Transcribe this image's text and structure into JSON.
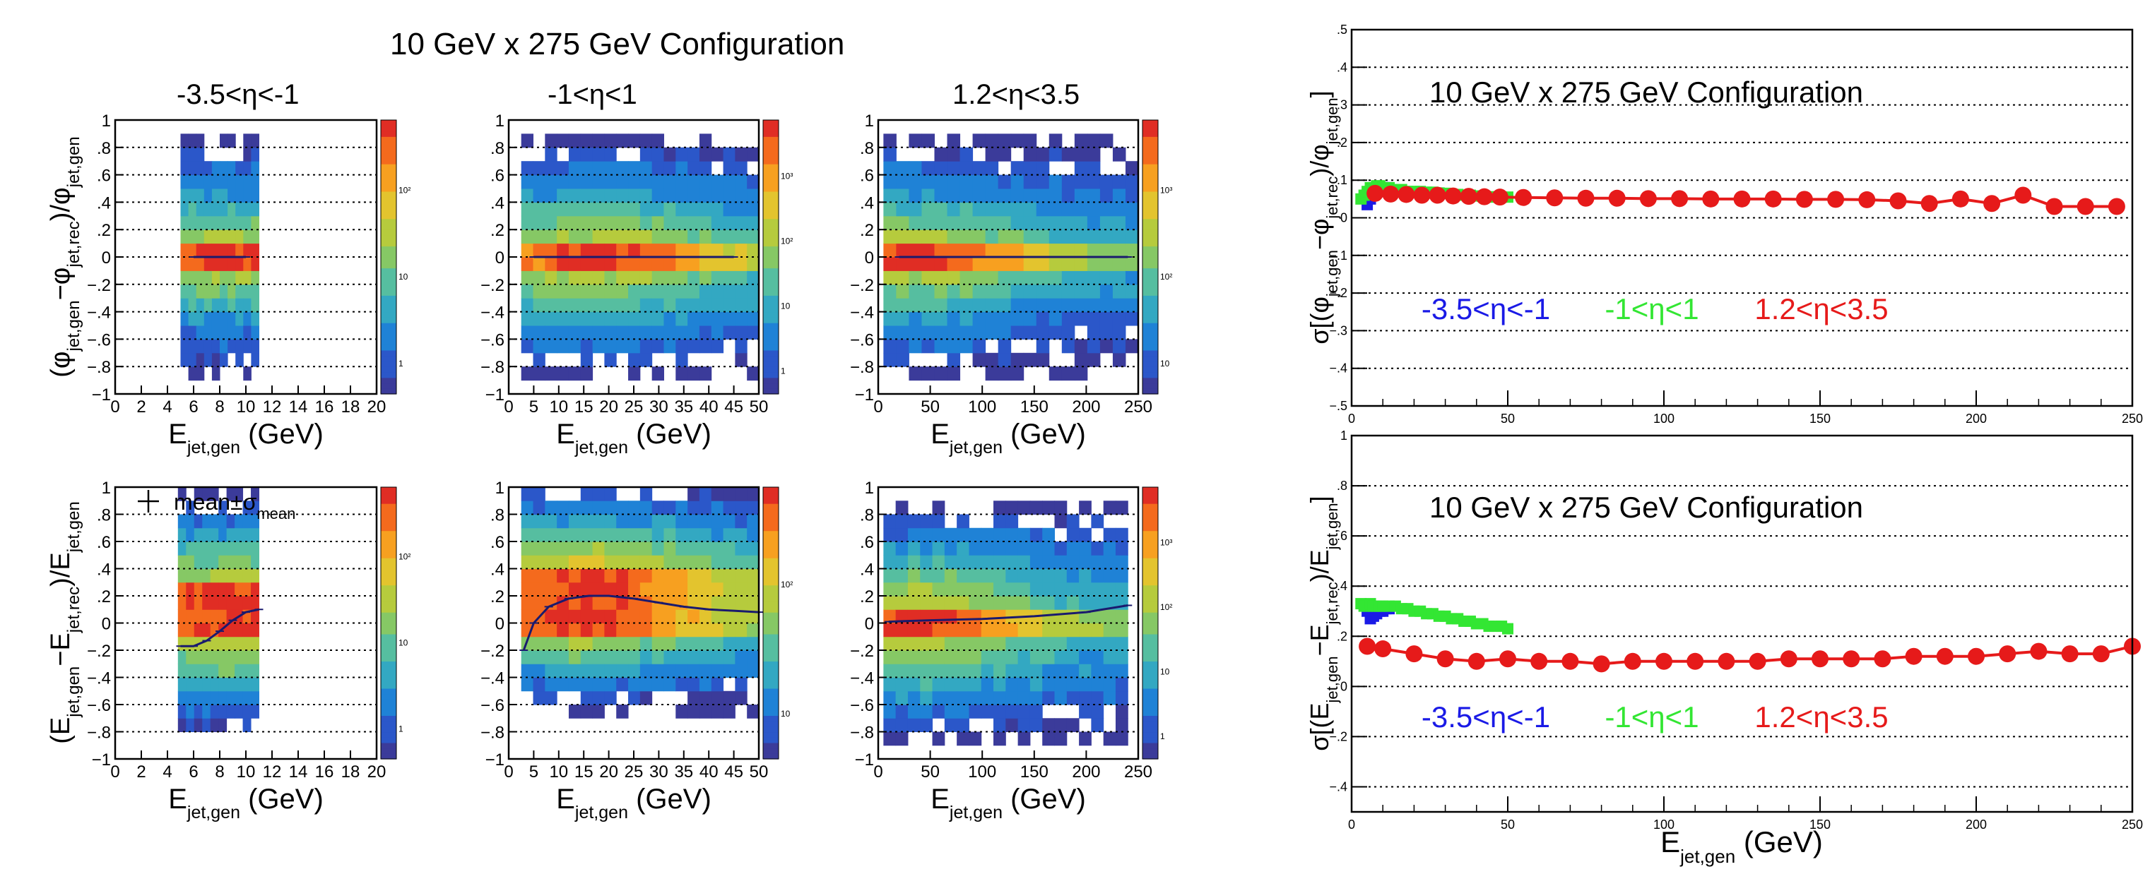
{
  "figure": {
    "left_title": "10 GeV x 275 GeV Configuration",
    "colors": {
      "eta_backward": "#1a1ae6",
      "eta_central": "#33e633",
      "eta_forward": "#e61a1a"
    }
  },
  "chart_data": [
    {
      "type": "heatmap",
      "panel": "top-left",
      "title": "-3.5<η<-1",
      "xlabel": "E_jet,gen (GeV)",
      "ylabel": "(φ_jet,gen−φ_jet,rec)/φ_jet,gen",
      "xlim": [
        0,
        20
      ],
      "ylim": [
        -1,
        1
      ],
      "xticks": [
        0,
        2,
        4,
        6,
        8,
        10,
        12,
        14,
        16,
        18,
        20
      ],
      "yticks": [
        -0.8,
        -0.6,
        -0.4,
        -0.2,
        0,
        0.2,
        0.4,
        0.6,
        0.8,
        1
      ],
      "color_scale": "log",
      "zticks": [
        "1",
        "10",
        "10²"
      ],
      "grid": "horizontal dotted",
      "occupied_x": [
        5,
        11
      ],
      "peak_x": 9,
      "core_halfwidth_y": 0.06,
      "spread_halfwidth_y": 0.38,
      "tail_halfwidth_y": 0.9,
      "mean_points": [
        [
          6,
          0
        ],
        [
          8,
          0
        ],
        [
          10,
          0
        ]
      ]
    },
    {
      "type": "heatmap",
      "panel": "top-middle",
      "title": "-1<η<1",
      "xlabel": "E_jet,gen (GeV)",
      "xlim": [
        0,
        50
      ],
      "ylim": [
        -1,
        1
      ],
      "xticks": [
        0,
        5,
        10,
        15,
        20,
        25,
        30,
        35,
        40,
        45,
        50
      ],
      "yticks": [
        -0.8,
        -0.6,
        -0.4,
        -0.2,
        0,
        0.2,
        0.4,
        0.6,
        0.8,
        1
      ],
      "color_scale": "log",
      "zticks": [
        "1",
        "10",
        "10²",
        "10³"
      ],
      "grid": "horizontal dotted",
      "occupied_x": [
        2.5,
        50
      ],
      "peak_x": 18,
      "core_halfwidth_y": 0.07,
      "spread_halfwidth_y": 0.45,
      "tail_halfwidth_y": 0.9,
      "mean_points": [
        [
          5,
          0
        ],
        [
          15,
          0
        ],
        [
          25,
          0
        ],
        [
          35,
          0
        ],
        [
          45,
          0
        ]
      ]
    },
    {
      "type": "heatmap",
      "panel": "top-right",
      "title": "1.2<η<3.5",
      "xlabel": "E_jet,gen (GeV)",
      "xlim": [
        0,
        250
      ],
      "ylim": [
        -1,
        1
      ],
      "xticks": [
        0,
        50,
        100,
        150,
        200,
        250
      ],
      "yticks": [
        -0.8,
        -0.6,
        -0.4,
        -0.2,
        0,
        0.2,
        0.4,
        0.6,
        0.8,
        1
      ],
      "color_scale": "log",
      "zticks": [
        "10",
        "10²",
        "10³"
      ],
      "grid": "horizontal dotted",
      "occupied_x": [
        5,
        250
      ],
      "peak_x": 30,
      "core_halfwidth_y": 0.07,
      "spread_halfwidth_y": 0.4,
      "tail_halfwidth_y": 0.9,
      "mean_points": [
        [
          20,
          0
        ],
        [
          80,
          0
        ],
        [
          140,
          0
        ],
        [
          200,
          0
        ],
        [
          240,
          0
        ]
      ]
    },
    {
      "type": "heatmap",
      "panel": "bottom-left",
      "xlabel": "E_jet,gen (GeV)",
      "ylabel": "(E_jet,gen−E_jet,rec)/E_jet,gen",
      "xlim": [
        0,
        20
      ],
      "ylim": [
        -1,
        1
      ],
      "xticks": [
        0,
        2,
        4,
        6,
        8,
        10,
        12,
        14,
        16,
        18,
        20
      ],
      "yticks": [
        -0.8,
        -0.6,
        -0.4,
        -0.2,
        0,
        0.2,
        0.4,
        0.6,
        0.8,
        1
      ],
      "color_scale": "log",
      "zticks": [
        "1",
        "10",
        "10²"
      ],
      "grid": "horizontal dotted",
      "legend_text": "mean±σ",
      "legend_sub": "mean",
      "occupied_x": [
        4.8,
        11
      ],
      "peak_x": 9,
      "core_center_y": 0.08,
      "core_halfwidth_y": 0.2,
      "spread_halfwidth_y": 0.55,
      "tail_halfwidth_y": 0.9,
      "mean_points": [
        [
          5,
          -0.17
        ],
        [
          6,
          -0.17
        ],
        [
          7,
          -0.13
        ],
        [
          8,
          -0.06
        ],
        [
          9,
          0.02
        ],
        [
          10,
          0.08
        ],
        [
          11,
          0.1
        ]
      ]
    },
    {
      "type": "heatmap",
      "panel": "bottom-middle",
      "xlabel": "E_jet,gen (GeV)",
      "xlim": [
        0,
        50
      ],
      "ylim": [
        -1,
        1
      ],
      "xticks": [
        0,
        5,
        10,
        15,
        20,
        25,
        30,
        35,
        40,
        45,
        50
      ],
      "yticks": [
        -0.8,
        -0.6,
        -0.4,
        -0.2,
        0,
        0.2,
        0.4,
        0.6,
        0.8,
        1
      ],
      "color_scale": "log",
      "zticks": [
        "10",
        "10²"
      ],
      "grid": "horizontal dotted",
      "occupied_x": [
        2.5,
        50
      ],
      "peak_x": 15,
      "core_center_y": 0.2,
      "core_halfwidth_y": 0.25,
      "spread_halfwidth_y": 0.55,
      "tail_halfwidth_y": 0.85,
      "mean_points": [
        [
          3,
          -0.2
        ],
        [
          5,
          0
        ],
        [
          8,
          0.12
        ],
        [
          12,
          0.18
        ],
        [
          16,
          0.2
        ],
        [
          20,
          0.2
        ],
        [
          25,
          0.18
        ],
        [
          30,
          0.15
        ],
        [
          35,
          0.12
        ],
        [
          40,
          0.1
        ],
        [
          45,
          0.09
        ],
        [
          50,
          0.08
        ]
      ]
    },
    {
      "type": "heatmap",
      "panel": "bottom-right",
      "xlabel": "E_jet,gen (GeV)",
      "xlim": [
        0,
        250
      ],
      "ylim": [
        -1,
        1
      ],
      "xticks": [
        0,
        50,
        100,
        150,
        200,
        250
      ],
      "yticks": [
        -0.8,
        -0.6,
        -0.4,
        -0.2,
        0,
        0.2,
        0.4,
        0.6,
        0.8,
        1
      ],
      "color_scale": "log",
      "zticks": [
        "1",
        "10",
        "10²",
        "10³"
      ],
      "grid": "horizontal dotted",
      "occupied_x": [
        5,
        240
      ],
      "peak_x": 25,
      "core_center_y": 0.02,
      "core_halfwidth_y": 0.1,
      "spread_halfwidth_y": 0.5,
      "tail_halfwidth_y": 0.9,
      "mean_points": [
        [
          10,
          0.01
        ],
        [
          50,
          0.02
        ],
        [
          100,
          0.03
        ],
        [
          150,
          0.05
        ],
        [
          200,
          0.08
        ],
        [
          240,
          0.13
        ]
      ]
    },
    {
      "type": "scatter",
      "panel": "right-top",
      "title": "10 GeV x 275 GeV Configuration",
      "ylabel": "σ[(φ_jet,gen−φ_jet,rec)/φ_jet,gen]",
      "xlim": [
        0,
        250
      ],
      "ylim": [
        -0.5,
        0.5
      ],
      "xticks": [
        0,
        50,
        100,
        150,
        200,
        250
      ],
      "yticks": [
        -0.5,
        -0.4,
        -0.3,
        -0.2,
        -0.1,
        0,
        0.1,
        0.2,
        0.3,
        0.4,
        0.5
      ],
      "grid": "horizontal dotted",
      "series": [
        {
          "name": "-3.5<η<-1",
          "color": "#1a1ae6",
          "marker": "square",
          "x": [
            5,
            6,
            7,
            8,
            9,
            10,
            11
          ],
          "y": [
            0.035,
            0.05,
            0.06,
            0.07,
            0.07,
            0.08,
            0.08
          ]
        },
        {
          "name": "-1<η<1",
          "color": "#33e633",
          "marker": "square",
          "x": [
            3,
            4,
            5,
            6,
            7,
            8,
            9,
            10,
            12,
            14,
            16,
            18,
            20,
            22,
            24,
            26,
            28,
            30,
            32,
            34,
            36,
            38,
            40,
            42,
            44,
            46,
            48,
            50
          ],
          "y": [
            0.05,
            0.06,
            0.07,
            0.08,
            0.08,
            0.085,
            0.085,
            0.08,
            0.08,
            0.075,
            0.075,
            0.07,
            0.07,
            0.07,
            0.068,
            0.068,
            0.066,
            0.065,
            0.063,
            0.062,
            0.06,
            0.06,
            0.058,
            0.057,
            0.056,
            0.055,
            0.055,
            0.055
          ]
        },
        {
          "name": "1.2<η<3.5",
          "color": "#e61a1a",
          "marker": "circle",
          "x": [
            7.5,
            12.5,
            17.5,
            22.5,
            27.5,
            32.5,
            37.5,
            42.5,
            47.5,
            55,
            65,
            75,
            85,
            95,
            105,
            115,
            125,
            135,
            145,
            155,
            165,
            175,
            185,
            195,
            205,
            215,
            225,
            235,
            245
          ],
          "y": [
            0.065,
            0.063,
            0.062,
            0.06,
            0.06,
            0.058,
            0.057,
            0.056,
            0.055,
            0.054,
            0.053,
            0.052,
            0.052,
            0.051,
            0.051,
            0.05,
            0.05,
            0.05,
            0.049,
            0.049,
            0.048,
            0.045,
            0.038,
            0.05,
            0.038,
            0.06,
            0.03,
            0.03,
            0.03
          ]
        }
      ]
    },
    {
      "type": "scatter",
      "panel": "right-bottom",
      "title": "10 GeV x 275 GeV Configuration",
      "xlabel": "E_jet,gen (GeV)",
      "ylabel": "σ[(E_jet,gen−E_jet,rec)/E_jet,gen]",
      "xlim": [
        0,
        250
      ],
      "ylim": [
        -0.5,
        1
      ],
      "xticks": [
        0,
        50,
        100,
        150,
        200,
        250
      ],
      "yticks": [
        -0.4,
        -0.2,
        0,
        0.2,
        0.4,
        0.6,
        0.8,
        1
      ],
      "grid": "horizontal dotted",
      "series": [
        {
          "name": "-3.5<η<-1",
          "color": "#1a1ae6",
          "marker": "square",
          "x": [
            5,
            6,
            7,
            8,
            9,
            10,
            11,
            12
          ],
          "y": [
            0.3,
            0.27,
            0.28,
            0.29,
            0.3,
            0.3,
            0.31,
            0.31
          ]
        },
        {
          "name": "-1<η<1",
          "color": "#33e633",
          "marker": "square",
          "x": [
            3,
            4,
            5,
            6,
            7,
            8,
            9,
            10,
            12,
            14,
            16,
            18,
            20,
            22,
            24,
            26,
            28,
            30,
            32,
            34,
            36,
            38,
            40,
            42,
            44,
            46,
            48,
            50
          ],
          "y": [
            0.33,
            0.32,
            0.32,
            0.33,
            0.32,
            0.32,
            0.32,
            0.32,
            0.32,
            0.32,
            0.31,
            0.31,
            0.3,
            0.3,
            0.29,
            0.29,
            0.28,
            0.28,
            0.27,
            0.27,
            0.26,
            0.26,
            0.25,
            0.25,
            0.24,
            0.24,
            0.24,
            0.23
          ]
        },
        {
          "name": "1.2<η<3.5",
          "color": "#e61a1a",
          "marker": "circle",
          "x": [
            5,
            10,
            20,
            30,
            40,
            50,
            60,
            70,
            80,
            90,
            100,
            110,
            120,
            130,
            140,
            150,
            160,
            170,
            180,
            190,
            200,
            210,
            220,
            230,
            240,
            250
          ],
          "y": [
            0.16,
            0.15,
            0.13,
            0.11,
            0.1,
            0.11,
            0.1,
            0.1,
            0.09,
            0.1,
            0.1,
            0.1,
            0.1,
            0.1,
            0.11,
            0.11,
            0.11,
            0.11,
            0.12,
            0.12,
            0.12,
            0.13,
            0.14,
            0.13,
            0.13,
            0.16
          ]
        }
      ]
    }
  ]
}
